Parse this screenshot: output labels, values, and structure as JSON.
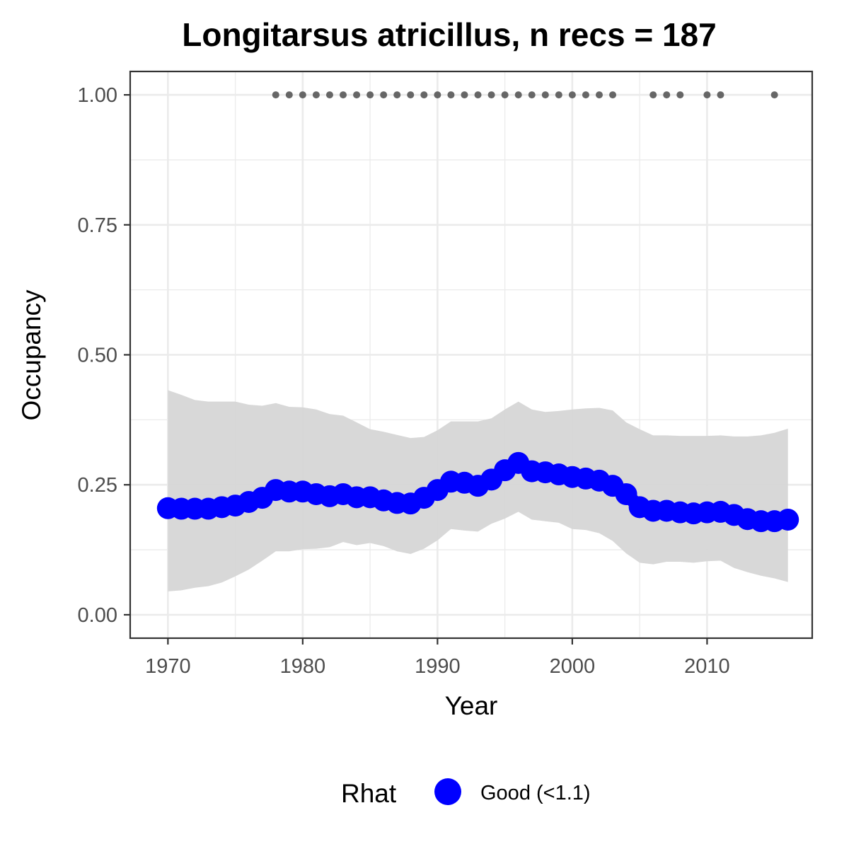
{
  "chart_data": {
    "type": "line",
    "title": "Longitarsus atricillus, n recs = 187",
    "xlabel": "Year",
    "ylabel": "Occupancy",
    "xlim": [
      1967.2,
      2017.8
    ],
    "ylim": [
      -0.045,
      1.045
    ],
    "x_ticks": [
      1970,
      1980,
      1990,
      2000,
      2010
    ],
    "x_tick_labels": [
      "1970",
      "1980",
      "1990",
      "2000",
      "2010"
    ],
    "y_ticks": [
      0,
      0.25,
      0.5,
      0.75,
      1
    ],
    "y_tick_labels": [
      "0.00",
      "0.25",
      "0.50",
      "0.75",
      "1.00"
    ],
    "grid": true,
    "legend": {
      "position": "bottom",
      "title": "Rhat",
      "entries": [
        {
          "label": "Good (<1.1)",
          "color": "#0000ff"
        }
      ]
    },
    "colors": {
      "line": "#0000ff",
      "ribbon": "#d6d6d6",
      "records": "#666666",
      "grid": "#ebebeb",
      "panel_border": "#333333"
    },
    "series": [
      {
        "name": "Good (<1.1)",
        "x": [
          1970,
          1971,
          1972,
          1973,
          1974,
          1975,
          1976,
          1977,
          1978,
          1979,
          1980,
          1981,
          1982,
          1983,
          1984,
          1985,
          1986,
          1987,
          1988,
          1989,
          1990,
          1991,
          1992,
          1993,
          1994,
          1995,
          1996,
          1997,
          1998,
          1999,
          2000,
          2001,
          2002,
          2003,
          2004,
          2005,
          2006,
          2007,
          2008,
          2009,
          2010,
          2011,
          2012,
          2013,
          2014,
          2015,
          2016
        ],
        "values": [
          0.205,
          0.204,
          0.204,
          0.204,
          0.207,
          0.21,
          0.217,
          0.225,
          0.24,
          0.237,
          0.237,
          0.232,
          0.228,
          0.232,
          0.226,
          0.226,
          0.22,
          0.215,
          0.214,
          0.225,
          0.24,
          0.256,
          0.254,
          0.248,
          0.26,
          0.278,
          0.292,
          0.276,
          0.274,
          0.27,
          0.265,
          0.262,
          0.258,
          0.248,
          0.232,
          0.207,
          0.2,
          0.2,
          0.197,
          0.195,
          0.197,
          0.198,
          0.192,
          0.184,
          0.18,
          0.18,
          0.183
        ],
        "lower": [
          0.045,
          0.047,
          0.052,
          0.055,
          0.062,
          0.074,
          0.087,
          0.104,
          0.122,
          0.122,
          0.126,
          0.127,
          0.13,
          0.14,
          0.134,
          0.138,
          0.132,
          0.122,
          0.117,
          0.127,
          0.143,
          0.165,
          0.162,
          0.16,
          0.175,
          0.185,
          0.198,
          0.183,
          0.18,
          0.177,
          0.165,
          0.163,
          0.157,
          0.142,
          0.118,
          0.1,
          0.097,
          0.102,
          0.102,
          0.1,
          0.103,
          0.104,
          0.09,
          0.082,
          0.075,
          0.07,
          0.063
        ],
        "upper": [
          0.432,
          0.423,
          0.413,
          0.41,
          0.41,
          0.41,
          0.404,
          0.402,
          0.407,
          0.4,
          0.399,
          0.395,
          0.386,
          0.383,
          0.37,
          0.357,
          0.352,
          0.346,
          0.34,
          0.342,
          0.355,
          0.372,
          0.372,
          0.372,
          0.378,
          0.395,
          0.41,
          0.395,
          0.39,
          0.392,
          0.395,
          0.397,
          0.398,
          0.393,
          0.37,
          0.357,
          0.345,
          0.345,
          0.344,
          0.344,
          0.344,
          0.345,
          0.343,
          0.343,
          0.345,
          0.35,
          0.358
        ]
      }
    ],
    "records": {
      "y": 1,
      "x": [
        1978,
        1979,
        1980,
        1981,
        1982,
        1983,
        1984,
        1985,
        1986,
        1987,
        1988,
        1989,
        1990,
        1991,
        1992,
        1993,
        1994,
        1995,
        1996,
        1997,
        1998,
        1999,
        2000,
        2001,
        2002,
        2003,
        2006,
        2007,
        2008,
        2010,
        2011,
        2015
      ]
    }
  }
}
